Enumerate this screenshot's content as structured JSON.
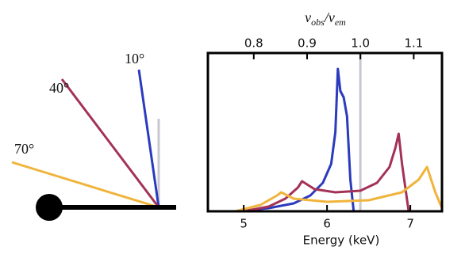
{
  "diagram": {
    "rays": [
      {
        "label": "10°",
        "color": "#2b3bbd"
      },
      {
        "label": "40°",
        "color": "#a33256"
      },
      {
        "label": "70°",
        "color": "#f0b43c"
      }
    ]
  },
  "chart_data": {
    "type": "line",
    "x_label": "Energy (keV)",
    "x2_label": [
      "v",
      "obs",
      "/v",
      "em"
    ],
    "xlim": [
      4.57,
      7.38
    ],
    "xticks": [
      5,
      6,
      7
    ],
    "x2lim": [
      0.714,
      1.153
    ],
    "x2ticks": [
      0.8,
      0.9,
      {
        "value": 1,
        "label": "1.0"
      },
      1.1
    ],
    "ylim": [
      0,
      1
    ],
    "reference_line": {
      "x": 6.4,
      "color": "#c8c8d0"
    },
    "series": [
      {
        "name": "10°",
        "color": "#2b3bbd",
        "x": [
          4.9,
          5.3,
          5.6,
          5.8,
          5.95,
          6.05,
          6.1,
          6.13,
          6.16,
          6.2,
          6.24,
          6.28,
          6.32
        ],
        "values": [
          0,
          0.02,
          0.05,
          0.1,
          0.18,
          0.3,
          0.5,
          0.9,
          0.76,
          0.72,
          0.6,
          0.2,
          0
        ]
      },
      {
        "name": "40°",
        "color": "#a33256",
        "x": [
          5.0,
          5.3,
          5.5,
          5.65,
          5.7,
          5.85,
          6.1,
          6.4,
          6.6,
          6.75,
          6.82,
          6.86,
          6.9,
          6.98
        ],
        "values": [
          0,
          0.03,
          0.08,
          0.15,
          0.19,
          0.14,
          0.12,
          0.13,
          0.18,
          0.28,
          0.4,
          0.49,
          0.3,
          0
        ]
      },
      {
        "name": "70°",
        "color": "#f0b43c",
        "x": [
          4.9,
          5.2,
          5.4,
          5.45,
          5.6,
          6.0,
          6.5,
          6.9,
          7.1,
          7.2,
          7.3,
          7.38
        ],
        "values": [
          0,
          0.04,
          0.1,
          0.12,
          0.08,
          0.06,
          0.07,
          0.12,
          0.2,
          0.28,
          0.12,
          0.02
        ]
      }
    ]
  }
}
